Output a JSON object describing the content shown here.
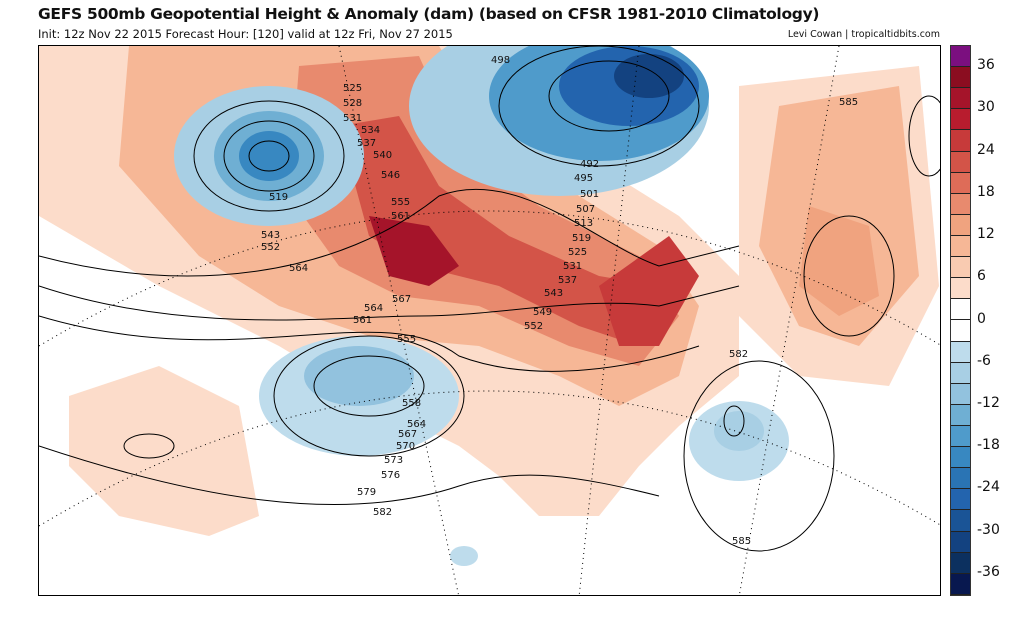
{
  "header": {
    "title": "GEFS 500mb Geopotential Height & Anomaly (dam) (based on CFSR 1981-2010 Climatology)",
    "subtitle": "Init: 12z Nov 22 2015   Forecast Hour: [120]   valid at 12z Fri, Nov 27 2015",
    "credit": "Levi Cowan | tropicaltidbits.com"
  },
  "colorbar": {
    "colors": [
      "#7b0f7f",
      "#8b0d20",
      "#a5142a",
      "#b81c2e",
      "#c73a3a",
      "#d35448",
      "#de6c58",
      "#e88a6e",
      "#f0a37f",
      "#f6b796",
      "#f9cbb1",
      "#fcdcca",
      "#ffffff",
      "#ffffff",
      "#bedcec",
      "#a8cfe4",
      "#92c2de",
      "#6fafd3",
      "#4f9bcb",
      "#3888c1",
      "#2a74b4",
      "#2364ae",
      "#1a5496",
      "#134280",
      "#0c305f",
      "#08184f"
    ],
    "ticks": [
      "36",
      "30",
      "24",
      "18",
      "12",
      "6",
      "0",
      "-6",
      "-12",
      "-18",
      "-24",
      "-30",
      "-36"
    ]
  },
  "contour_labels": [
    "498",
    "525",
    "528",
    "531",
    "534",
    "537",
    "540",
    "546",
    "555",
    "561",
    "519",
    "543",
    "552",
    "564",
    "567",
    "564",
    "561",
    "555",
    "558",
    "564",
    "567",
    "570",
    "573",
    "576",
    "579",
    "582",
    "492",
    "495",
    "501",
    "507",
    "513",
    "519",
    "525",
    "531",
    "537",
    "543",
    "549",
    "552",
    "582",
    "585",
    "585"
  ]
}
